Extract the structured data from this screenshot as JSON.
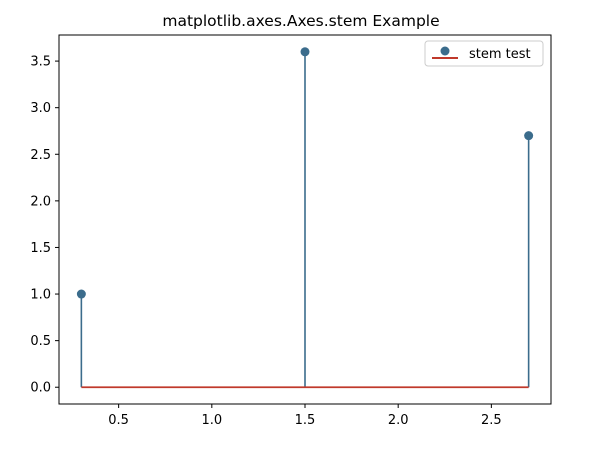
{
  "chart_data": {
    "type": "stem",
    "title": "matplotlib.axes.Axes.stem Example",
    "xlabel": "",
    "ylabel": "",
    "series": [
      {
        "name": "stem test",
        "x": [
          0.3,
          1.5,
          2.7
        ],
        "y": [
          1.0,
          3.6,
          2.7
        ]
      }
    ],
    "baseline": 0.0,
    "xlim": [
      0.18,
      2.82
    ],
    "ylim": [
      -0.18,
      3.78
    ],
    "xticks": [
      0.5,
      1.0,
      1.5,
      2.0,
      2.5
    ],
    "xtick_labels": [
      "0.5",
      "1.0",
      "1.5",
      "2.0",
      "2.5"
    ],
    "yticks": [
      0.0,
      0.5,
      1.0,
      1.5,
      2.0,
      2.5,
      3.0,
      3.5
    ],
    "ytick_labels": [
      "0.0",
      "0.5",
      "1.0",
      "1.5",
      "2.0",
      "2.5",
      "3.0",
      "3.5"
    ],
    "grid": false,
    "legend_position": "top-right",
    "colors": {
      "stem": "#3b6c8c",
      "marker": "#3b6c8c",
      "baseline": "#c0392b"
    }
  }
}
